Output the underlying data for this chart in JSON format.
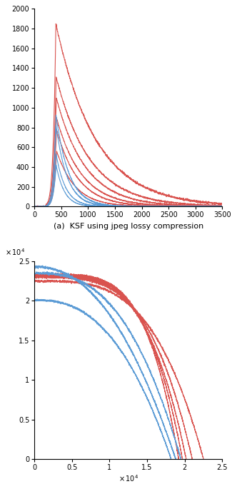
{
  "subplot1": {
    "title": "(a)  KSF using jpeg lossy compression",
    "xlim": [
      0,
      3500
    ],
    "ylim": [
      0,
      2000
    ],
    "xticks": [
      0,
      500,
      1000,
      1500,
      2000,
      2500,
      3000,
      3500
    ],
    "yticks": [
      0,
      200,
      400,
      600,
      800,
      1000,
      1200,
      1400,
      1600,
      1800,
      2000
    ],
    "red_curves": [
      {
        "peak_y": 1850,
        "decay": 0.00135,
        "start_x": 400
      },
      {
        "peak_y": 1310,
        "decay": 0.0016,
        "start_x": 405
      },
      {
        "peak_y": 1100,
        "decay": 0.00185,
        "start_x": 408
      },
      {
        "peak_y": 900,
        "decay": 0.00215,
        "start_x": 410
      },
      {
        "peak_y": 780,
        "decay": 0.0025,
        "start_x": 412
      },
      {
        "peak_y": 560,
        "decay": 0.0029,
        "start_x": 415
      }
    ],
    "blue_curves": [
      {
        "peak_y": 930,
        "decay": 0.0042,
        "start_x": 402
      },
      {
        "peak_y": 820,
        "decay": 0.0048,
        "start_x": 403
      },
      {
        "peak_y": 530,
        "decay": 0.0056,
        "start_x": 404
      },
      {
        "peak_y": 420,
        "decay": 0.0065,
        "start_x": 405
      }
    ]
  },
  "subplot2": {
    "xlim": [
      0,
      25000
    ],
    "ylim": [
      0,
      25000
    ],
    "xticks": [
      0,
      5000,
      10000,
      15000,
      20000,
      25000
    ],
    "yticks": [
      0,
      5000,
      10000,
      15000,
      20000,
      25000
    ],
    "red_curves": [
      {
        "start_y": 22500,
        "end_x": 22500,
        "p": 3.5
      },
      {
        "start_y": 23000,
        "end_x": 21000,
        "p": 3.8
      },
      {
        "start_y": 23100,
        "end_x": 20200,
        "p": 4.0
      },
      {
        "start_y": 23200,
        "end_x": 19700,
        "p": 4.3
      },
      {
        "start_y": 23300,
        "end_x": 19200,
        "p": 4.6
      }
    ],
    "blue_curves": [
      {
        "start_y": 24300,
        "end_x": 18800,
        "p": 2.2
      },
      {
        "start_y": 23500,
        "end_x": 19500,
        "p": 2.7
      },
      {
        "start_y": 20100,
        "end_x": 18200,
        "p": 2.5
      }
    ]
  },
  "red_color": "#d9534f",
  "blue_color": "#5b9bd5",
  "linewidth": 0.8,
  "bg_color": "#ffffff"
}
